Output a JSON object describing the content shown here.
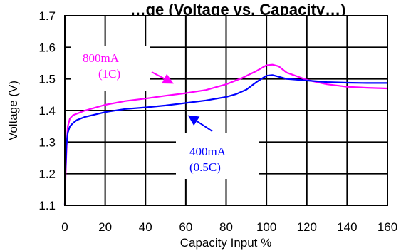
{
  "chart_data": {
    "type": "line",
    "title": "…ge (Voltage vs. Capacity…)",
    "xlabel": "Capacity Input %",
    "ylabel": "Voltage (V)",
    "xlim": [
      0,
      160
    ],
    "ylim": [
      1.1,
      1.7
    ],
    "xticks": [
      "0",
      "20",
      "40",
      "60",
      "80",
      "100",
      "120",
      "140",
      "160"
    ],
    "yticks": [
      "1.1",
      "1.2",
      "1.3",
      "1.4",
      "1.5",
      "1.6",
      "1.7"
    ],
    "grid": true,
    "series": [
      {
        "name": "800mA (1C)",
        "color": "#ff00ff",
        "x": [
          0,
          0.5,
          1,
          1.5,
          2.5,
          4,
          6,
          10,
          20,
          30,
          40,
          50,
          60,
          70,
          80,
          88,
          95,
          100,
          103,
          106,
          110,
          120,
          130,
          140,
          150,
          160
        ],
        "y": [
          1.1,
          1.22,
          1.3,
          1.35,
          1.375,
          1.385,
          1.39,
          1.4,
          1.418,
          1.43,
          1.438,
          1.447,
          1.455,
          1.465,
          1.483,
          1.503,
          1.525,
          1.543,
          1.545,
          1.54,
          1.52,
          1.497,
          1.483,
          1.475,
          1.472,
          1.47
        ]
      },
      {
        "name": "400mA (0.5C)",
        "color": "#0000ff",
        "x": [
          0,
          0.3,
          0.8,
          1.5,
          2.5,
          4,
          6,
          10,
          20,
          30,
          40,
          50,
          60,
          70,
          80,
          85,
          90,
          95,
          100,
          103,
          106,
          110,
          120,
          130,
          140,
          150,
          160
        ],
        "y": [
          1.1,
          1.2,
          1.29,
          1.33,
          1.35,
          1.36,
          1.37,
          1.38,
          1.395,
          1.405,
          1.41,
          1.416,
          1.424,
          1.432,
          1.443,
          1.452,
          1.466,
          1.49,
          1.51,
          1.512,
          1.507,
          1.5,
          1.495,
          1.49,
          1.488,
          1.487,
          1.487
        ]
      }
    ],
    "annotations": [
      {
        "series": 0,
        "lines": [
          "800mA",
          "(1C)"
        ],
        "color": "#ff00ff",
        "arrow_to": [
          54,
          1.485
        ]
      },
      {
        "series": 1,
        "lines": [
          "400mA",
          "(0.5C)"
        ],
        "color": "#0000ff",
        "arrow_to": [
          61,
          1.385
        ]
      }
    ]
  }
}
